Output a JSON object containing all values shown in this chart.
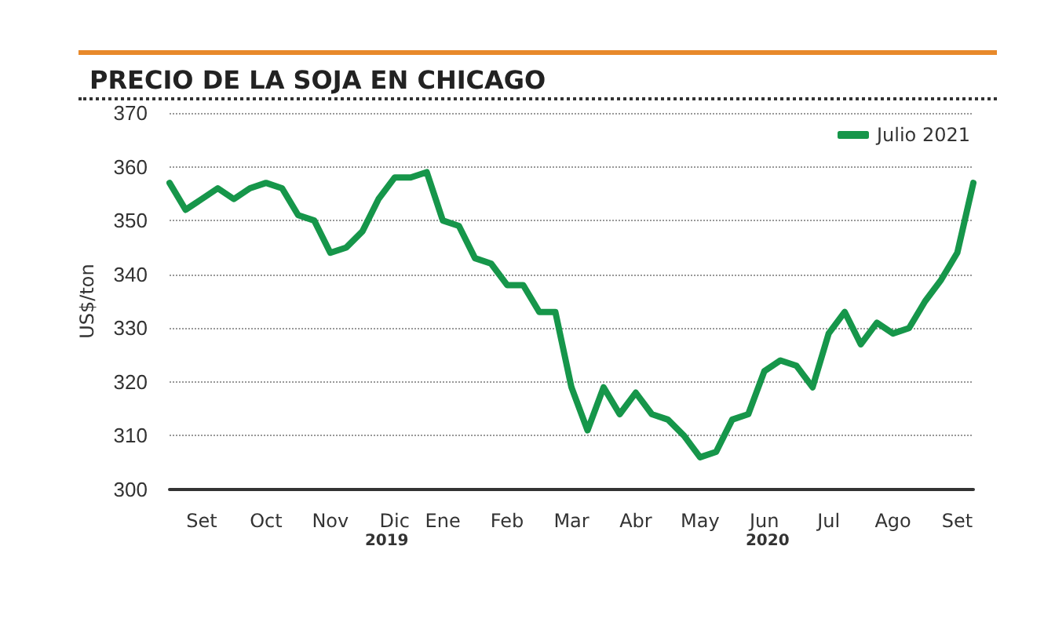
{
  "chart_data": {
    "type": "line",
    "title": "PRECIO DE LA SOJA EN CHICAGO",
    "ylabel": "US$/ton",
    "categories": [
      null,
      null,
      "Set",
      null,
      null,
      null,
      "Oct",
      null,
      null,
      null,
      "Nov",
      null,
      null,
      null,
      "Dic",
      null,
      null,
      "Ene",
      null,
      null,
      null,
      "Feb",
      null,
      null,
      null,
      "Mar",
      null,
      null,
      null,
      "Abr",
      null,
      null,
      null,
      "May",
      null,
      null,
      null,
      "Jun",
      null,
      null,
      null,
      "Jul",
      null,
      null,
      null,
      "Ago",
      null,
      null,
      null,
      "Set",
      null
    ],
    "series": [
      {
        "name": "Julio 2021",
        "color": "#16964a",
        "values": [
          357,
          352,
          354,
          356,
          354,
          356,
          357,
          356,
          351,
          350,
          344,
          345,
          348,
          354,
          358,
          358,
          359,
          350,
          349,
          343,
          342,
          338,
          338,
          333,
          333,
          319,
          311,
          319,
          314,
          318,
          314,
          313,
          310,
          306,
          307,
          313,
          314,
          322,
          324,
          323,
          319,
          329,
          333,
          327,
          331,
          329,
          330,
          335,
          339,
          344,
          357
        ]
      }
    ],
    "ylim": [
      300,
      370
    ],
    "yticks": [
      300,
      310,
      320,
      330,
      340,
      350,
      360,
      370
    ],
    "grid": "y",
    "legend": "top right",
    "marker": "none",
    "line_style": "solid",
    "annotations": [
      "2019",
      "2020"
    ]
  }
}
